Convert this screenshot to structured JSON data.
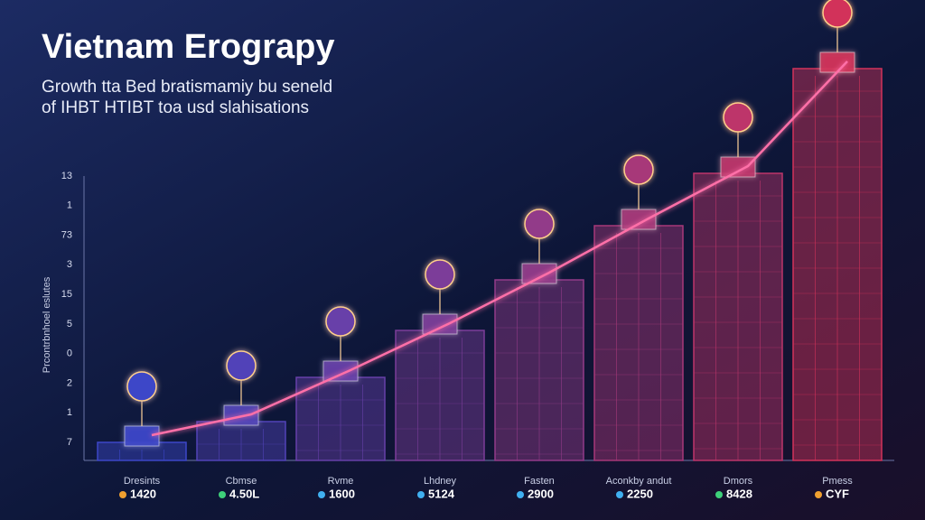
{
  "header": {
    "title": "Vietnam Erograpy",
    "subtitle": [
      "Growth tta Bed bratismamiy bu seneld",
      "of IHBT HTIBT toa usd slahisations"
    ]
  },
  "axis": {
    "label": "Prcontrbnhoel eslutes",
    "ticks": [
      "13",
      "1",
      "73",
      "3",
      "15",
      "5",
      "0",
      "2",
      "1",
      "7"
    ]
  },
  "columns": [
    {
      "label": "Dresints",
      "figure": "1420"
    },
    {
      "label": "Cbmse",
      "figure": "4.50L"
    },
    {
      "label": "Rvme",
      "figure": "1600"
    },
    {
      "label": "Lhdney",
      "figure": "5124"
    },
    {
      "label": "Fasten",
      "figure": "2900"
    },
    {
      "label": "Aconkby andut",
      "figure": "2250"
    },
    {
      "label": "Dmors",
      "figure": "8428"
    },
    {
      "label": "Pmess",
      "figure": "CYF"
    }
  ]
}
